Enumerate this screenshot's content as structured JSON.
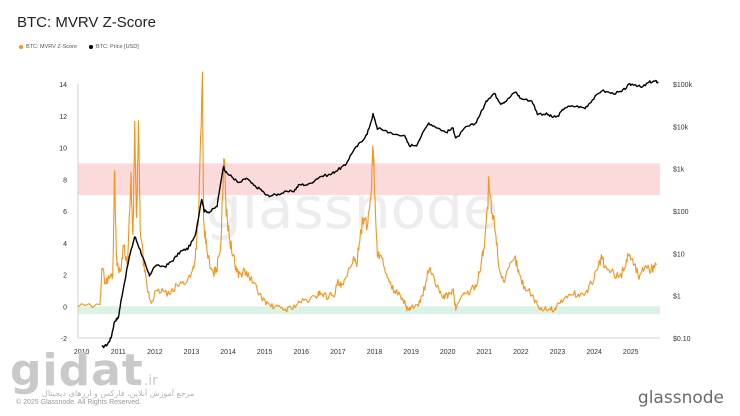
{
  "header": {
    "title": "BTC: MVRV Z-Score"
  },
  "legend": [
    {
      "label": "BTC: MVRV Z-Score",
      "color": "#f7931a"
    },
    {
      "label": "BTC: Price [USD]",
      "color": "#000000"
    }
  ],
  "footer": {
    "copyright": "© 2025 Glassnode. All Rights Reserved.",
    "brand": "glassnode",
    "watermark": "glassnode"
  },
  "site_watermark": {
    "name": "gidat",
    "tld": ".ir",
    "subtitle": "مرجع آموزش آنلاین، فارکس و ارزهای دیجیتال"
  },
  "chart_data": {
    "type": "line",
    "x_ticks": [
      "2010",
      "2011",
      "2012",
      "2013",
      "2014",
      "2015",
      "2016",
      "2017",
      "2018",
      "2019",
      "2020",
      "2021",
      "2022",
      "2023",
      "2024",
      "2025"
    ],
    "y_left_ticks": [
      "14",
      "12",
      "10",
      "8",
      "6",
      "4",
      "2",
      "0",
      "-2"
    ],
    "y_left_range": [
      -2,
      14
    ],
    "y_right_ticks": [
      "$100k",
      "$10k",
      "$1k",
      "$100",
      "$10",
      "$1",
      "$0.10"
    ],
    "y_right_scale": "log",
    "y_right_range": [
      0.1,
      100000
    ],
    "bands": [
      {
        "name": "",
        "from": 7,
        "to": 9,
        "color": "#fadada"
      },
      {
        "name": "",
        "from": -0.5,
        "to": 0,
        "color": "#dcf2e6"
      }
    ],
    "series": [
      {
        "name": "BTC: MVRV Z-Score",
        "axis": "left",
        "color": "#f7931a",
        "points": [
          [
            2009.9,
            0
          ],
          [
            2010.5,
            0
          ],
          [
            2010.55,
            2.5
          ],
          [
            2010.65,
            1.5
          ],
          [
            2010.75,
            1.8
          ],
          [
            2010.85,
            2
          ],
          [
            2010.9,
            8.7
          ],
          [
            2010.95,
            3
          ],
          [
            2011.05,
            2
          ],
          [
            2011.15,
            4
          ],
          [
            2011.25,
            2.5
          ],
          [
            2011.35,
            8
          ],
          [
            2011.4,
            4
          ],
          [
            2011.45,
            11.2
          ],
          [
            2011.5,
            5
          ],
          [
            2011.55,
            11.5
          ],
          [
            2011.6,
            5
          ],
          [
            2011.7,
            2.5
          ],
          [
            2011.8,
            1
          ],
          [
            2011.9,
            0.2
          ],
          [
            2012.0,
            0.8
          ],
          [
            2012.2,
            1
          ],
          [
            2012.4,
            0.7
          ],
          [
            2012.6,
            1.3
          ],
          [
            2012.8,
            1.5
          ],
          [
            2013.0,
            2
          ],
          [
            2013.1,
            3
          ],
          [
            2013.2,
            6
          ],
          [
            2013.3,
            14.5
          ],
          [
            2013.33,
            5
          ],
          [
            2013.4,
            4
          ],
          [
            2013.5,
            2.5
          ],
          [
            2013.6,
            2
          ],
          [
            2013.7,
            2.5
          ],
          [
            2013.8,
            4
          ],
          [
            2013.9,
            9.8
          ],
          [
            2013.95,
            6
          ],
          [
            2014.0,
            5
          ],
          [
            2014.1,
            3.5
          ],
          [
            2014.2,
            2.5
          ],
          [
            2014.3,
            2
          ],
          [
            2014.45,
            2.2
          ],
          [
            2014.6,
            1.8
          ],
          [
            2014.8,
            1
          ],
          [
            2015.0,
            0.3
          ],
          [
            2015.2,
            0
          ],
          [
            2015.4,
            -0.1
          ],
          [
            2015.6,
            -0.2
          ],
          [
            2015.8,
            0
          ],
          [
            2016.0,
            0.3
          ],
          [
            2016.2,
            0.4
          ],
          [
            2016.4,
            0.6
          ],
          [
            2016.5,
            0.9
          ],
          [
            2016.7,
            0.6
          ],
          [
            2016.9,
            0.8
          ],
          [
            2017.0,
            1.5
          ],
          [
            2017.1,
            1.2
          ],
          [
            2017.25,
            1.8
          ],
          [
            2017.4,
            3
          ],
          [
            2017.5,
            2.5
          ],
          [
            2017.6,
            4.5
          ],
          [
            2017.7,
            5.5
          ],
          [
            2017.8,
            5
          ],
          [
            2017.9,
            7
          ],
          [
            2017.96,
            10.2
          ],
          [
            2018.0,
            7.5
          ],
          [
            2018.08,
            3
          ],
          [
            2018.15,
            3.5
          ],
          [
            2018.3,
            2
          ],
          [
            2018.45,
            1.2
          ],
          [
            2018.6,
            0.9
          ],
          [
            2018.8,
            0.3
          ],
          [
            2018.9,
            -0.2
          ],
          [
            2019.0,
            -0.1
          ],
          [
            2019.2,
            0
          ],
          [
            2019.35,
            1
          ],
          [
            2019.5,
            2.5
          ],
          [
            2019.6,
            1.8
          ],
          [
            2019.75,
            1
          ],
          [
            2019.9,
            0.6
          ],
          [
            2020.0,
            0.7
          ],
          [
            2020.15,
            1
          ],
          [
            2020.22,
            -0.2
          ],
          [
            2020.35,
            0.6
          ],
          [
            2020.5,
            0.8
          ],
          [
            2020.65,
            1
          ],
          [
            2020.8,
            1.5
          ],
          [
            2020.9,
            2.5
          ],
          [
            2021.0,
            4
          ],
          [
            2021.1,
            6.5
          ],
          [
            2021.12,
            7.8
          ],
          [
            2021.2,
            6
          ],
          [
            2021.3,
            5
          ],
          [
            2021.4,
            2.5
          ],
          [
            2021.55,
            1.5
          ],
          [
            2021.7,
            2.5
          ],
          [
            2021.85,
            3
          ],
          [
            2021.95,
            2
          ],
          [
            2022.1,
            1.2
          ],
          [
            2022.3,
            0.8
          ],
          [
            2022.45,
            0
          ],
          [
            2022.6,
            -0.2
          ],
          [
            2022.8,
            -0.1
          ],
          [
            2022.9,
            -0.3
          ],
          [
            2023.0,
            0.1
          ],
          [
            2023.2,
            0.5
          ],
          [
            2023.4,
            0.8
          ],
          [
            2023.6,
            0.7
          ],
          [
            2023.8,
            0.9
          ],
          [
            2023.95,
            1.6
          ],
          [
            2024.1,
            2.3
          ],
          [
            2024.2,
            3.1
          ],
          [
            2024.3,
            2.4
          ],
          [
            2024.5,
            2.1
          ],
          [
            2024.7,
            1.8
          ],
          [
            2024.85,
            2.6
          ],
          [
            2024.95,
            3.4
          ],
          [
            2025.1,
            2.6
          ],
          [
            2025.25,
            1.8
          ],
          [
            2025.4,
            2.7
          ],
          [
            2025.55,
            2.3
          ],
          [
            2025.7,
            2.6
          ]
        ]
      },
      {
        "name": "BTC: Price [USD]",
        "axis": "right",
        "color": "#000000",
        "points": [
          [
            2010.55,
            0.06
          ],
          [
            2010.7,
            0.07
          ],
          [
            2010.8,
            0.1
          ],
          [
            2010.9,
            0.25
          ],
          [
            2011.0,
            0.3
          ],
          [
            2011.1,
            1
          ],
          [
            2011.3,
            8
          ],
          [
            2011.45,
            25
          ],
          [
            2011.6,
            12
          ],
          [
            2011.75,
            5
          ],
          [
            2011.85,
            3
          ],
          [
            2012.0,
            5
          ],
          [
            2012.3,
            5
          ],
          [
            2012.5,
            7
          ],
          [
            2012.7,
            11
          ],
          [
            2012.9,
            13
          ],
          [
            2013.1,
            25
          ],
          [
            2013.28,
            200
          ],
          [
            2013.35,
            100
          ],
          [
            2013.5,
            95
          ],
          [
            2013.7,
            130
          ],
          [
            2013.87,
            1150
          ],
          [
            2013.95,
            800
          ],
          [
            2014.1,
            650
          ],
          [
            2014.3,
            450
          ],
          [
            2014.5,
            600
          ],
          [
            2014.7,
            400
          ],
          [
            2014.9,
            320
          ],
          [
            2015.05,
            230
          ],
          [
            2015.3,
            240
          ],
          [
            2015.5,
            270
          ],
          [
            2015.8,
            300
          ],
          [
            2015.95,
            420
          ],
          [
            2016.2,
            420
          ],
          [
            2016.5,
            650
          ],
          [
            2016.8,
            730
          ],
          [
            2017.0,
            950
          ],
          [
            2017.2,
            1200
          ],
          [
            2017.4,
            2500
          ],
          [
            2017.6,
            4000
          ],
          [
            2017.8,
            6500
          ],
          [
            2017.96,
            19000
          ],
          [
            2018.08,
            9000
          ],
          [
            2018.3,
            8000
          ],
          [
            2018.5,
            6500
          ],
          [
            2018.8,
            6300
          ],
          [
            2018.95,
            3500
          ],
          [
            2019.15,
            3700
          ],
          [
            2019.48,
            12000
          ],
          [
            2019.7,
            9500
          ],
          [
            2019.95,
            7200
          ],
          [
            2020.15,
            9000
          ],
          [
            2020.22,
            5000
          ],
          [
            2020.5,
            9500
          ],
          [
            2020.75,
            11500
          ],
          [
            2020.95,
            25000
          ],
          [
            2021.1,
            45000
          ],
          [
            2021.27,
            60000
          ],
          [
            2021.45,
            35000
          ],
          [
            2021.6,
            40000
          ],
          [
            2021.85,
            66000
          ],
          [
            2022.0,
            45000
          ],
          [
            2022.3,
            40000
          ],
          [
            2022.45,
            20000
          ],
          [
            2022.7,
            19500
          ],
          [
            2022.87,
            16500
          ],
          [
            2023.0,
            17000
          ],
          [
            2023.2,
            28000
          ],
          [
            2023.5,
            30000
          ],
          [
            2023.75,
            27000
          ],
          [
            2023.95,
            42000
          ],
          [
            2024.2,
            70000
          ],
          [
            2024.5,
            60000
          ],
          [
            2024.75,
            65000
          ],
          [
            2024.95,
            95000
          ],
          [
            2025.1,
            100000
          ],
          [
            2025.3,
            82000
          ],
          [
            2025.5,
            110000
          ],
          [
            2025.65,
            115000
          ],
          [
            2025.75,
            112000
          ]
        ]
      }
    ]
  }
}
